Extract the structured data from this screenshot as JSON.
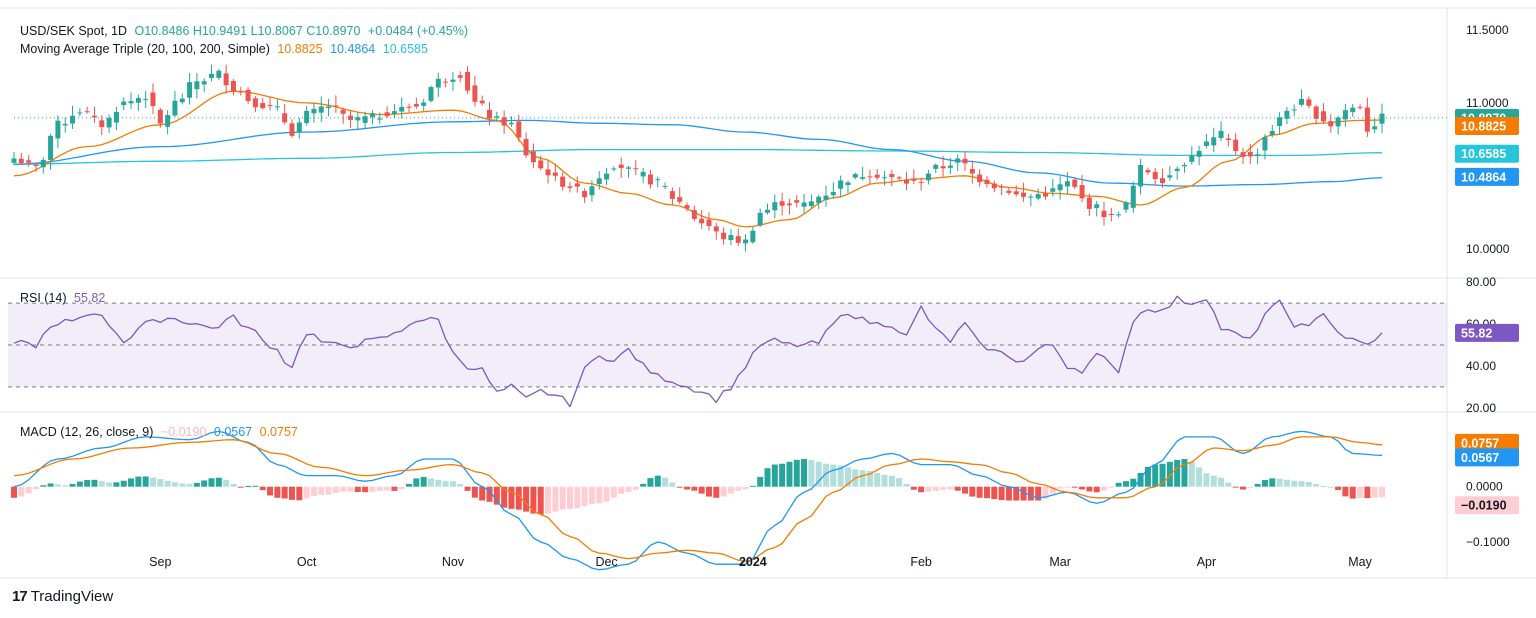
{
  "price": {
    "symbol_label": "USD/SEK Spot, 1D",
    "ohlc": {
      "o": "O10.8486",
      "h": "H10.9491",
      "l": "L10.8067",
      "c": "C10.8970",
      "chg": "+0.0484 (+0.45%)"
    },
    "ma_label": "Moving Average Triple (20, 100, 200, Simple)",
    "ma20": "10.8825",
    "ma100": "10.4864",
    "ma200": "10.6585",
    "last": "10.8970"
  },
  "rsi": {
    "label": "RSI (14)",
    "value": "55.82"
  },
  "macd": {
    "label": "MACD (12, 26, close, 9)",
    "hist": "−0.0190",
    "macd": "0.0567",
    "signal": "0.0757"
  },
  "brand": {
    "name": "TradingView",
    "logo": "17"
  },
  "colors": {
    "up": "#26a69a",
    "down": "#ef5350",
    "ma20": "#f57c00",
    "ma100": "#2196f3",
    "ma200": "#26c6da",
    "rsi": "#7e57c2",
    "macd": "#2196f3",
    "signal": "#f57c00"
  },
  "chart_data": [
    {
      "type": "candlestick",
      "title": "USD/SEK Spot, 1D",
      "ylim": [
        9.8,
        11.65
      ],
      "yticks": [
        "10.0000",
        "10.5000",
        "11.0000",
        "11.5000"
      ],
      "ytick_values": [
        10.0,
        10.5,
        11.0,
        11.5
      ],
      "x_range": [
        0,
        187
      ],
      "xticks": [
        {
          "label": "Sep",
          "x": 20
        },
        {
          "label": "Oct",
          "x": 40
        },
        {
          "label": "Nov",
          "x": 60
        },
        {
          "label": "Dec",
          "x": 81
        },
        {
          "label": "2024",
          "x": 101
        },
        {
          "label": "Feb",
          "x": 124
        },
        {
          "label": "Mar",
          "x": 143
        },
        {
          "label": "Apr",
          "x": 163
        },
        {
          "label": "May",
          "x": 184
        }
      ],
      "close_anchors": [
        [
          0,
          10.62
        ],
        [
          3,
          10.55
        ],
        [
          6,
          10.85
        ],
        [
          9,
          10.95
        ],
        [
          12,
          10.85
        ],
        [
          15,
          11.0
        ],
        [
          18,
          11.05
        ],
        [
          20,
          10.85
        ],
        [
          22,
          11.0
        ],
        [
          25,
          11.15
        ],
        [
          28,
          11.2
        ],
        [
          30,
          11.1
        ],
        [
          33,
          11.0
        ],
        [
          36,
          10.95
        ],
        [
          38,
          10.8
        ],
        [
          40,
          10.92
        ],
        [
          43,
          10.98
        ],
        [
          46,
          10.88
        ],
        [
          49,
          10.9
        ],
        [
          52,
          10.95
        ],
        [
          55,
          10.98
        ],
        [
          58,
          11.15
        ],
        [
          61,
          11.2
        ],
        [
          63,
          11.0
        ],
        [
          66,
          10.88
        ],
        [
          68,
          10.85
        ],
        [
          70,
          10.65
        ],
        [
          72,
          10.55
        ],
        [
          75,
          10.45
        ],
        [
          78,
          10.38
        ],
        [
          80,
          10.5
        ],
        [
          82,
          10.58
        ],
        [
          85,
          10.52
        ],
        [
          88,
          10.45
        ],
        [
          91,
          10.32
        ],
        [
          94,
          10.18
        ],
        [
          97,
          10.08
        ],
        [
          100,
          10.05
        ],
        [
          102,
          10.25
        ],
        [
          105,
          10.32
        ],
        [
          108,
          10.3
        ],
        [
          111,
          10.38
        ],
        [
          114,
          10.48
        ],
        [
          117,
          10.52
        ],
        [
          120,
          10.48
        ],
        [
          123,
          10.45
        ],
        [
          126,
          10.55
        ],
        [
          129,
          10.6
        ],
        [
          132,
          10.48
        ],
        [
          135,
          10.42
        ],
        [
          138,
          10.35
        ],
        [
          141,
          10.38
        ],
        [
          144,
          10.45
        ],
        [
          147,
          10.3
        ],
        [
          150,
          10.22
        ],
        [
          152,
          10.3
        ],
        [
          154,
          10.55
        ],
        [
          157,
          10.48
        ],
        [
          160,
          10.6
        ],
        [
          163,
          10.72
        ],
        [
          165,
          10.78
        ],
        [
          167,
          10.68
        ],
        [
          169,
          10.62
        ],
        [
          172,
          10.82
        ],
        [
          174,
          10.95
        ],
        [
          176,
          11.0
        ],
        [
          178,
          10.92
        ],
        [
          180,
          10.85
        ],
        [
          182,
          10.95
        ],
        [
          184,
          10.98
        ],
        [
          185,
          10.82
        ],
        [
          187,
          10.897
        ]
      ],
      "ma20_anchors": [
        [
          0,
          10.5
        ],
        [
          10,
          10.7
        ],
        [
          20,
          10.85
        ],
        [
          30,
          11.08
        ],
        [
          40,
          11.0
        ],
        [
          50,
          10.92
        ],
        [
          60,
          10.95
        ],
        [
          66,
          10.88
        ],
        [
          72,
          10.62
        ],
        [
          78,
          10.45
        ],
        [
          84,
          10.38
        ],
        [
          90,
          10.3
        ],
        [
          96,
          10.2
        ],
        [
          100,
          10.15
        ],
        [
          106,
          10.2
        ],
        [
          112,
          10.35
        ],
        [
          118,
          10.45
        ],
        [
          124,
          10.48
        ],
        [
          130,
          10.5
        ],
        [
          136,
          10.42
        ],
        [
          142,
          10.38
        ],
        [
          148,
          10.36
        ],
        [
          154,
          10.3
        ],
        [
          160,
          10.42
        ],
        [
          166,
          10.6
        ],
        [
          172,
          10.78
        ],
        [
          178,
          10.86
        ],
        [
          184,
          10.88
        ],
        [
          187,
          10.8825
        ]
      ],
      "ma100_anchors": [
        [
          0,
          10.58
        ],
        [
          20,
          10.7
        ],
        [
          40,
          10.8
        ],
        [
          60,
          10.87
        ],
        [
          70,
          10.88
        ],
        [
          80,
          10.86
        ],
        [
          90,
          10.85
        ],
        [
          100,
          10.8
        ],
        [
          110,
          10.75
        ],
        [
          120,
          10.68
        ],
        [
          130,
          10.6
        ],
        [
          140,
          10.52
        ],
        [
          150,
          10.45
        ],
        [
          160,
          10.43
        ],
        [
          170,
          10.44
        ],
        [
          180,
          10.46
        ],
        [
          187,
          10.4864
        ]
      ],
      "ma200_anchors": [
        [
          0,
          10.58
        ],
        [
          20,
          10.6
        ],
        [
          40,
          10.62
        ],
        [
          60,
          10.66
        ],
        [
          80,
          10.68
        ],
        [
          100,
          10.68
        ],
        [
          120,
          10.67
        ],
        [
          140,
          10.66
        ],
        [
          160,
          10.64
        ],
        [
          175,
          10.64
        ],
        [
          187,
          10.6585
        ]
      ]
    },
    {
      "type": "line",
      "title": "RSI (14)",
      "ylim": [
        18,
        82
      ],
      "yticks": [
        "20.00",
        "40.00",
        "60.00",
        "80.00"
      ],
      "ytick_values": [
        20,
        40,
        60,
        80
      ],
      "bands": [
        30,
        50,
        70
      ],
      "anchors": [
        [
          0,
          52
        ],
        [
          3,
          50
        ],
        [
          5,
          58
        ],
        [
          8,
          62
        ],
        [
          11,
          66
        ],
        [
          13,
          60
        ],
        [
          15,
          52
        ],
        [
          18,
          60
        ],
        [
          21,
          63
        ],
        [
          24,
          61
        ],
        [
          27,
          58
        ],
        [
          30,
          63
        ],
        [
          32,
          58
        ],
        [
          35,
          50
        ],
        [
          38,
          40
        ],
        [
          40,
          56
        ],
        [
          43,
          50
        ],
        [
          46,
          50
        ],
        [
          49,
          52
        ],
        [
          52,
          55
        ],
        [
          55,
          62
        ],
        [
          58,
          62
        ],
        [
          60,
          46
        ],
        [
          62,
          40
        ],
        [
          64,
          38
        ],
        [
          66,
          27
        ],
        [
          68,
          30
        ],
        [
          70,
          24
        ],
        [
          72,
          28
        ],
        [
          74,
          26
        ],
        [
          76,
          22
        ],
        [
          78,
          38
        ],
        [
          80,
          46
        ],
        [
          82,
          42
        ],
        [
          84,
          48
        ],
        [
          86,
          40
        ],
        [
          88,
          35
        ],
        [
          90,
          33
        ],
        [
          92,
          30
        ],
        [
          94,
          28
        ],
        [
          96,
          24
        ],
        [
          98,
          30
        ],
        [
          100,
          40
        ],
        [
          102,
          50
        ],
        [
          104,
          52
        ],
        [
          106,
          50
        ],
        [
          108,
          50
        ],
        [
          110,
          51
        ],
        [
          112,
          60
        ],
        [
          114,
          66
        ],
        [
          116,
          62
        ],
        [
          118,
          60
        ],
        [
          120,
          60
        ],
        [
          122,
          54
        ],
        [
          124,
          68
        ],
        [
          126,
          57
        ],
        [
          128,
          52
        ],
        [
          130,
          60
        ],
        [
          132,
          50
        ],
        [
          135,
          46
        ],
        [
          138,
          42
        ],
        [
          140,
          48
        ],
        [
          142,
          50
        ],
        [
          144,
          40
        ],
        [
          146,
          38
        ],
        [
          148,
          45
        ],
        [
          151,
          38
        ],
        [
          153,
          62
        ],
        [
          155,
          68
        ],
        [
          157,
          66
        ],
        [
          159,
          72
        ],
        [
          161,
          70
        ],
        [
          163,
          73
        ],
        [
          165,
          58
        ],
        [
          167,
          55
        ],
        [
          169,
          52
        ],
        [
          171,
          65
        ],
        [
          173,
          70
        ],
        [
          175,
          60
        ],
        [
          177,
          58
        ],
        [
          179,
          66
        ],
        [
          181,
          56
        ],
        [
          183,
          52
        ],
        [
          185,
          50
        ],
        [
          187,
          55.82
        ]
      ]
    },
    {
      "type": "macd",
      "title": "MACD (12, 26, close, 9)",
      "ylim": [
        -0.165,
        0.135
      ],
      "yticks": [
        "0.0000",
        "−0.1000"
      ],
      "ytick_values": [
        0.0,
        -0.1
      ],
      "macd_anchors": [
        [
          0,
          0.0
        ],
        [
          6,
          0.05
        ],
        [
          12,
          0.07
        ],
        [
          18,
          0.09
        ],
        [
          24,
          0.085
        ],
        [
          28,
          0.1
        ],
        [
          32,
          0.08
        ],
        [
          36,
          0.04
        ],
        [
          40,
          0.02
        ],
        [
          44,
          0.02
        ],
        [
          48,
          0.01
        ],
        [
          52,
          0.02
        ],
        [
          56,
          0.05
        ],
        [
          60,
          0.05
        ],
        [
          64,
          0.0
        ],
        [
          68,
          -0.05
        ],
        [
          72,
          -0.1
        ],
        [
          76,
          -0.13
        ],
        [
          80,
          -0.15
        ],
        [
          84,
          -0.14
        ],
        [
          88,
          -0.1
        ],
        [
          92,
          -0.12
        ],
        [
          96,
          -0.14
        ],
        [
          100,
          -0.14
        ],
        [
          104,
          -0.07
        ],
        [
          108,
          -0.01
        ],
        [
          112,
          0.03
        ],
        [
          116,
          0.05
        ],
        [
          120,
          0.06
        ],
        [
          124,
          0.04
        ],
        [
          128,
          0.04
        ],
        [
          132,
          0.02
        ],
        [
          136,
          0.0
        ],
        [
          140,
          -0.02
        ],
        [
          144,
          -0.01
        ],
        [
          148,
          -0.03
        ],
        [
          152,
          -0.01
        ],
        [
          156,
          0.04
        ],
        [
          160,
          0.09
        ],
        [
          164,
          0.09
        ],
        [
          168,
          0.06
        ],
        [
          172,
          0.09
        ],
        [
          176,
          0.1
        ],
        [
          180,
          0.09
        ],
        [
          183,
          0.06
        ],
        [
          187,
          0.0567
        ]
      ],
      "signal_anchors": [
        [
          0,
          0.02
        ],
        [
          8,
          0.05
        ],
        [
          16,
          0.07
        ],
        [
          24,
          0.08
        ],
        [
          30,
          0.085
        ],
        [
          36,
          0.06
        ],
        [
          42,
          0.035
        ],
        [
          48,
          0.02
        ],
        [
          54,
          0.03
        ],
        [
          60,
          0.04
        ],
        [
          64,
          0.025
        ],
        [
          68,
          -0.01
        ],
        [
          72,
          -0.05
        ],
        [
          76,
          -0.09
        ],
        [
          80,
          -0.12
        ],
        [
          84,
          -0.13
        ],
        [
          88,
          -0.12
        ],
        [
          92,
          -0.115
        ],
        [
          96,
          -0.12
        ],
        [
          100,
          -0.135
        ],
        [
          104,
          -0.11
        ],
        [
          108,
          -0.06
        ],
        [
          112,
          -0.01
        ],
        [
          116,
          0.02
        ],
        [
          120,
          0.04
        ],
        [
          124,
          0.05
        ],
        [
          128,
          0.045
        ],
        [
          132,
          0.04
        ],
        [
          136,
          0.025
        ],
        [
          140,
          0.005
        ],
        [
          144,
          -0.01
        ],
        [
          148,
          -0.02
        ],
        [
          152,
          -0.02
        ],
        [
          156,
          0.0
        ],
        [
          160,
          0.04
        ],
        [
          164,
          0.07
        ],
        [
          168,
          0.065
        ],
        [
          172,
          0.075
        ],
        [
          176,
          0.09
        ],
        [
          180,
          0.09
        ],
        [
          184,
          0.08
        ],
        [
          187,
          0.0757
        ]
      ]
    }
  ]
}
